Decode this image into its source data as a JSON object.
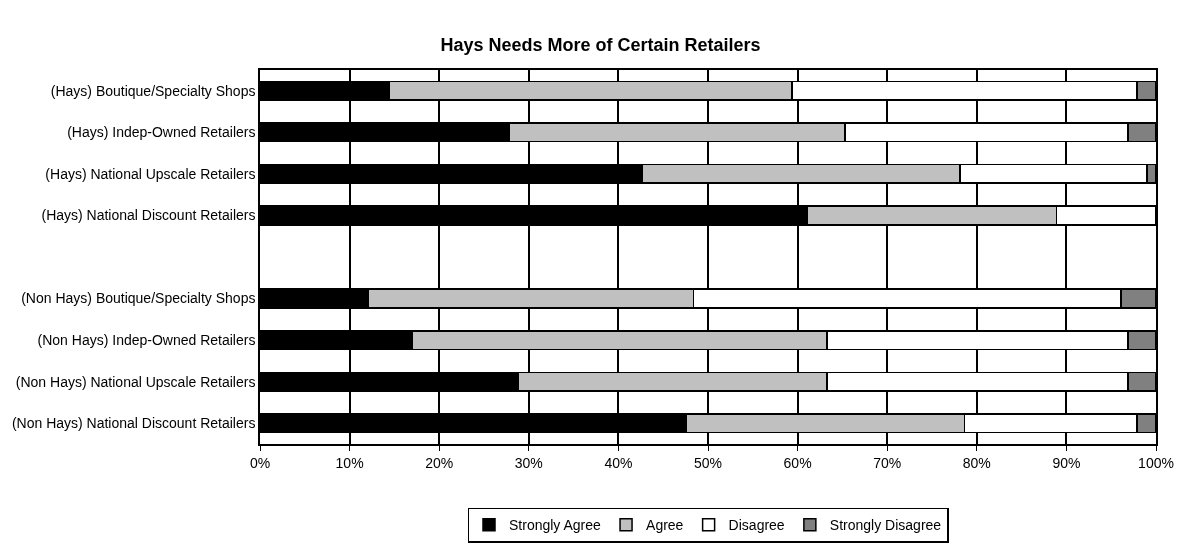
{
  "chart_data": {
    "type": "bar",
    "orientation": "horizontal",
    "stacked": true,
    "title": "Hays Needs More of Certain Retailers",
    "categories": [
      "(Hays) Boutique/Specialty Shops",
      "(Hays) Indep-Owned Retailers",
      "(Hays) National Upscale Retailers",
      "(Hays) National Discount Retailers",
      null,
      "(Non Hays) Boutique/Specialty Shops",
      "(Non Hays) Indep-Owned Retailers",
      "(Non Hays) National Upscale Retailers",
      "(Non Hays) National Discount Retailers"
    ],
    "series": [
      {
        "name": "Strongly Agree",
        "color": "#000000",
        "values": [
          14.4,
          27.8,
          42.7,
          61.1,
          null,
          12.1,
          17.0,
          28.8,
          47.6
        ]
      },
      {
        "name": "Agree",
        "color": "#c0c0c0",
        "values": [
          45.0,
          37.5,
          35.4,
          27.8,
          null,
          36.3,
          46.3,
          34.5,
          31.0
        ]
      },
      {
        "name": "Disagree",
        "color": "#ffffff",
        "values": [
          38.5,
          31.6,
          20.9,
          11.1,
          null,
          47.7,
          33.6,
          33.6,
          19.3
        ]
      },
      {
        "name": "Strongly Disagree",
        "color": "#808080",
        "values": [
          2.1,
          3.1,
          1.0,
          0,
          null,
          3.9,
          3.1,
          3.1,
          2.1
        ]
      }
    ],
    "xlim": [
      0,
      100
    ],
    "xticks": [
      {
        "value": 0,
        "label": "0%"
      },
      {
        "value": 10,
        "label": "10%"
      },
      {
        "value": 20,
        "label": "20%"
      },
      {
        "value": 30,
        "label": "30%"
      },
      {
        "value": 40,
        "label": "40%"
      },
      {
        "value": 50,
        "label": "50%"
      },
      {
        "value": 60,
        "label": "60%"
      },
      {
        "value": 70,
        "label": "70%"
      },
      {
        "value": 80,
        "label": "80%"
      },
      {
        "value": 90,
        "label": "90%"
      },
      {
        "value": 100,
        "label": "100%"
      }
    ],
    "grid": "x",
    "legend": "bottom"
  }
}
